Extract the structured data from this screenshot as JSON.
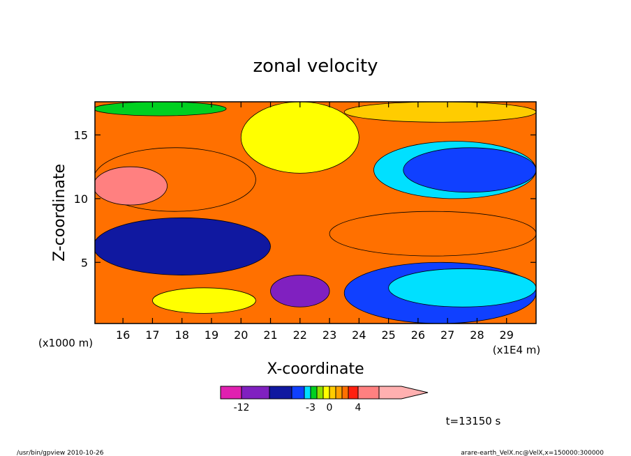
{
  "chart_data": {
    "type": "heatmap",
    "title": "zonal velocity",
    "xlabel": "X-coordinate",
    "ylabel": "Z-coordinate",
    "x_unit_label": "(x1E4 m)",
    "y_unit_label": "(x1000 m)",
    "x_ticks": [
      "16",
      "17",
      "18",
      "19",
      "20",
      "21",
      "22",
      "23",
      "24",
      "25",
      "26",
      "27",
      "28",
      "29"
    ],
    "y_ticks": [
      "5",
      "10",
      "15"
    ],
    "xlim": [
      15.05,
      30.0
    ],
    "ylim": [
      0.2,
      17.6
    ],
    "colorbar": {
      "labels": [
        {
          "value": -12,
          "text": "-12"
        },
        {
          "value": -3,
          "text": "-3"
        },
        {
          "value": 0,
          "text": "0"
        },
        {
          "value": 4,
          "text": "4"
        }
      ],
      "levels": [
        -16,
        -12,
        -8,
        -6,
        -4,
        -3,
        -2,
        -1,
        0,
        1,
        2,
        3,
        4,
        8,
        12,
        16
      ],
      "colors": [
        "#e020b0",
        "#8020c0",
        "#1018a0",
        "#1040ff",
        "#00e0ff",
        "#00d020",
        "#90e000",
        "#ffff00",
        "#ffcc00",
        "#ffa000",
        "#ff7000",
        "#ff2010",
        "#ff8080",
        "#ffb0b0"
      ]
    },
    "regions": [
      {
        "name": "band",
        "z": [
          0.2,
          17.6
        ],
        "u": 2.5
      },
      {
        "name": "top-green",
        "x": [
          15.0,
          19.5
        ],
        "z": [
          16.5,
          17.6
        ],
        "u": -2.5
      },
      {
        "name": "top-green-2",
        "x": [
          23.5,
          30.0
        ],
        "z": [
          16.0,
          17.6
        ],
        "u": 0.5
      },
      {
        "name": "upper-yellow",
        "x": [
          20.0,
          24.0
        ],
        "z": [
          12.0,
          17.6
        ],
        "u": -0.5
      },
      {
        "name": "upper-orange",
        "x": [
          15.0,
          20.5
        ],
        "z": [
          9.0,
          14.0
        ],
        "u": 2.5
      },
      {
        "name": "red-core",
        "x": [
          15.0,
          17.5
        ],
        "z": [
          9.5,
          12.5
        ],
        "u": 6
      },
      {
        "name": "cyan-east",
        "x": [
          24.5,
          30.0
        ],
        "z": [
          10.0,
          14.5
        ],
        "u": -3.5
      },
      {
        "name": "blue-east",
        "x": [
          25.5,
          30.0
        ],
        "z": [
          10.5,
          14.0
        ],
        "u": -5
      },
      {
        "name": "orange-mid",
        "x": [
          23.0,
          30.0
        ],
        "z": [
          5.5,
          9.0
        ],
        "u": 2.5
      },
      {
        "name": "blue-lower-west",
        "x": [
          15.0,
          21.0
        ],
        "z": [
          4.0,
          8.5
        ],
        "u": -7
      },
      {
        "name": "blue-lower-east",
        "x": [
          23.5,
          30.0
        ],
        "z": [
          0.2,
          5.0
        ],
        "u": -5
      },
      {
        "name": "cyan-lower-east",
        "x": [
          25.0,
          30.0
        ],
        "z": [
          1.5,
          4.5
        ],
        "u": -3.5
      },
      {
        "name": "purple-core",
        "x": [
          21.0,
          23.0
        ],
        "z": [
          1.5,
          4.0
        ],
        "u": -12
      },
      {
        "name": "yellow-surface",
        "x": [
          17.0,
          20.5
        ],
        "z": [
          1.0,
          3.0
        ],
        "u": -0.5
      }
    ]
  },
  "footer": {
    "time_label": "t=13150 s",
    "left_note": "/usr/bin/gpview   2010-10-26",
    "right_note": "arare-earth_VelX.nc@VelX,x=150000:300000"
  }
}
